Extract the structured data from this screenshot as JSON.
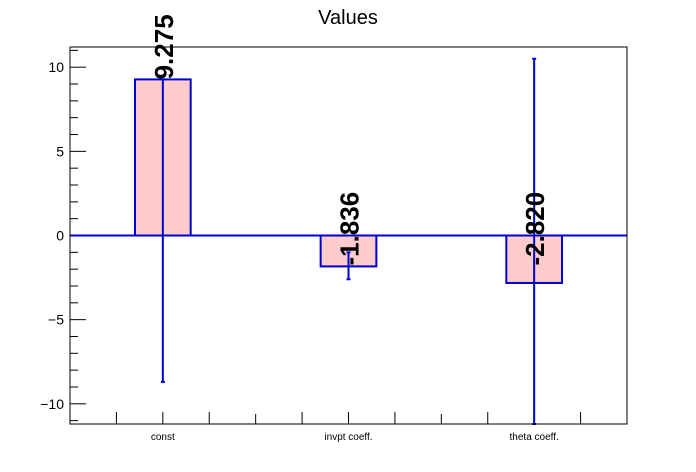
{
  "chart_data": {
    "type": "bar",
    "title": "Values",
    "xlabel": "",
    "ylabel": "",
    "categories": [
      "const",
      "invpt coeff.",
      "theta coeff."
    ],
    "values": [
      9.275,
      -1.836,
      -2.82
    ],
    "error_low": [
      -8.7,
      -2.6,
      -11.2
    ],
    "error_high": [
      9.275,
      -1.0,
      10.5
    ],
    "data_labels": [
      "9.275",
      "-1.836",
      "-2.820"
    ],
    "ylim": [
      -11.2,
      11.2
    ],
    "yticks": [
      10,
      5,
      0,
      -5,
      -10
    ],
    "ytick_labels": [
      "10",
      "5",
      "0",
      "−5",
      "−10"
    ],
    "grid": false,
    "legend": "none",
    "colors": {
      "bar_fill": "#ffcccc",
      "bar_stroke": "#0000cc",
      "axis": "#000000",
      "label": "#000000"
    }
  }
}
